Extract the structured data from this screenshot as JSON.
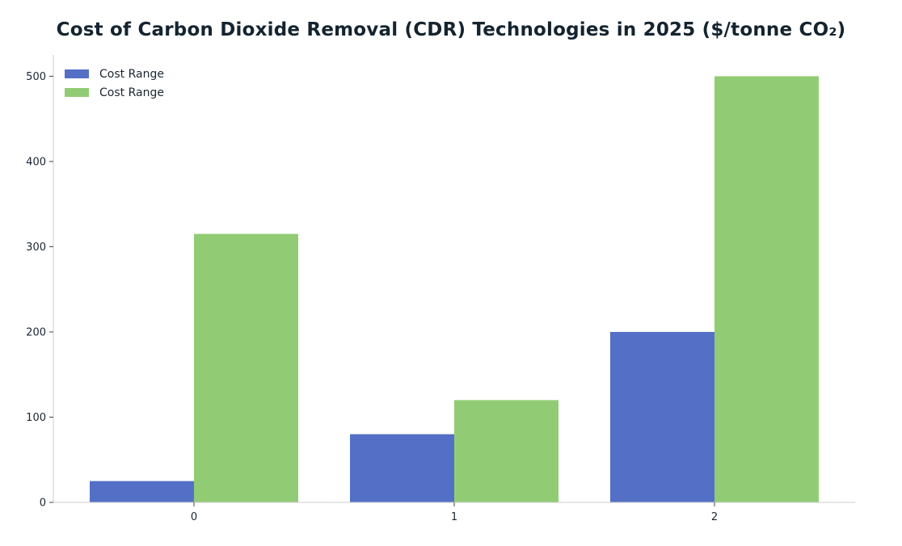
{
  "chart_data": {
    "type": "bar",
    "title": "Cost of Carbon Dioxide Removal (CDR) Technologies in 2025 ($/tonne CO₂)",
    "xlabel": "",
    "ylabel": "",
    "categories": [
      "0",
      "1",
      "2"
    ],
    "series": [
      {
        "name": "Cost Range",
        "color": "#5470c6",
        "values": [
          25,
          80,
          200
        ]
      },
      {
        "name": "Cost Range",
        "color": "#91cc75",
        "values": [
          315,
          120,
          500
        ]
      }
    ],
    "ylim": [
      0,
      525
    ],
    "yticks": [
      0,
      100,
      200,
      300,
      400,
      500
    ],
    "grid": false,
    "legend_position": "top-left"
  }
}
